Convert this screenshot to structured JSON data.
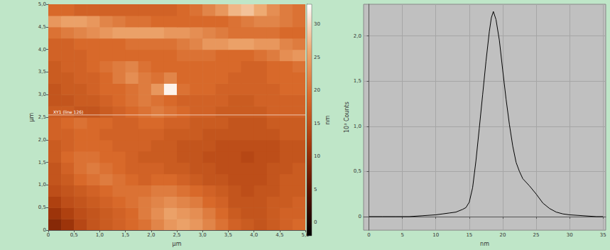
{
  "chart_data": [
    {
      "type": "heatmap",
      "x": [
        0.125,
        0.375,
        0.625,
        0.875,
        1.125,
        1.375,
        1.625,
        1.875,
        2.125,
        2.375,
        2.625,
        2.875,
        3.125,
        3.375,
        3.625,
        3.875,
        4.125,
        4.375,
        4.625,
        4.875
      ],
      "y": [
        0.125,
        0.375,
        0.625,
        0.875,
        1.125,
        1.375,
        1.625,
        1.875,
        2.125,
        2.375,
        2.625,
        2.875,
        3.125,
        3.375,
        3.625,
        3.875,
        4.125,
        4.375,
        4.625,
        4.875
      ],
      "z": [
        [
          9,
          11,
          14,
          16,
          17,
          18,
          19,
          20,
          22,
          24,
          25,
          24,
          22,
          20,
          18,
          17,
          16,
          17,
          18,
          19
        ],
        [
          11,
          13,
          15,
          16,
          17,
          18,
          19,
          21,
          23,
          25,
          24,
          23,
          21,
          19,
          17,
          16,
          16,
          17,
          18,
          18
        ],
        [
          13,
          15,
          16,
          17,
          18,
          19,
          20,
          21,
          22,
          23,
          22,
          21,
          19,
          18,
          16,
          16,
          16,
          17,
          17,
          18
        ],
        [
          15,
          16,
          17,
          18,
          19,
          20,
          20,
          20,
          21,
          21,
          20,
          19,
          18,
          17,
          16,
          15,
          16,
          16,
          17,
          17
        ],
        [
          16,
          17,
          19,
          20,
          21,
          20,
          19,
          18,
          19,
          19,
          18,
          17,
          16,
          16,
          15,
          15,
          15,
          16,
          17,
          17
        ],
        [
          16,
          18,
          20,
          21,
          20,
          19,
          18,
          18,
          18,
          17,
          17,
          16,
          16,
          15,
          15,
          15,
          15,
          16,
          16,
          17
        ],
        [
          17,
          19,
          20,
          20,
          19,
          19,
          18,
          17,
          17,
          17,
          16,
          16,
          15,
          15,
          15,
          14,
          15,
          15,
          16,
          16
        ],
        [
          17,
          18,
          19,
          19,
          19,
          18,
          18,
          18,
          17,
          17,
          16,
          16,
          16,
          15,
          15,
          15,
          15,
          15,
          16,
          16
        ],
        [
          18,
          18,
          19,
          19,
          18,
          18,
          18,
          18,
          18,
          17,
          17,
          17,
          16,
          16,
          16,
          16,
          16,
          16,
          17,
          17
        ],
        [
          18,
          19,
          20,
          19,
          19,
          18,
          18,
          19,
          19,
          18,
          18,
          17,
          17,
          17,
          16,
          16,
          16,
          17,
          17,
          17
        ],
        [
          17,
          17,
          16,
          16,
          17,
          18,
          19,
          20,
          21,
          20,
          19,
          18,
          18,
          17,
          17,
          17,
          17,
          18,
          18,
          18
        ],
        [
          16,
          16,
          17,
          17,
          18,
          19,
          20,
          21,
          20,
          19,
          18,
          18,
          18,
          18,
          17,
          17,
          18,
          18,
          18,
          18
        ],
        [
          16,
          17,
          17,
          18,
          19,
          19,
          20,
          21,
          24,
          32,
          20,
          19,
          19,
          18,
          18,
          18,
          18,
          18,
          19,
          19
        ],
        [
          17,
          17,
          18,
          18,
          19,
          21,
          23,
          21,
          20,
          22,
          19,
          19,
          19,
          19,
          18,
          18,
          18,
          19,
          19,
          19
        ],
        [
          17,
          18,
          18,
          19,
          20,
          21,
          22,
          20,
          19,
          19,
          19,
          19,
          19,
          19,
          19,
          18,
          18,
          19,
          19,
          20
        ],
        [
          18,
          18,
          18,
          19,
          19,
          19,
          19,
          19,
          19,
          19,
          20,
          20,
          20,
          19,
          19,
          19,
          20,
          21,
          23,
          24
        ],
        [
          18,
          18,
          19,
          19,
          19,
          19,
          20,
          20,
          20,
          20,
          21,
          22,
          24,
          24,
          25,
          25,
          24,
          24,
          22,
          21
        ],
        [
          20,
          21,
          22,
          23,
          24,
          25,
          25,
          25,
          25,
          24,
          24,
          23,
          22,
          21,
          20,
          20,
          20,
          20,
          19,
          19
        ],
        [
          24,
          25,
          25,
          24,
          22,
          21,
          20,
          20,
          19,
          19,
          19,
          19,
          19,
          19,
          20,
          21,
          22,
          22,
          21,
          20
        ],
        [
          19,
          19,
          18,
          18,
          18,
          18,
          18,
          18,
          18,
          18,
          19,
          20,
          22,
          24,
          27,
          28,
          26,
          23,
          21,
          20
        ]
      ],
      "xlim": [
        0,
        5
      ],
      "ylim": [
        0,
        5
      ],
      "xticks": [
        0,
        {
          "value": 0.5,
          "label": "0,5"
        },
        {
          "value": 1,
          "label": "1,0"
        },
        {
          "value": 1.5,
          "label": "1,5"
        },
        {
          "value": 2,
          "label": "2,0"
        },
        {
          "value": 2.5,
          "label": "2,5"
        },
        {
          "value": 3,
          "label": "3,0"
        },
        {
          "value": 3.5,
          "label": "3,5"
        },
        {
          "value": 4,
          "label": "4,0"
        },
        {
          "value": 4.5,
          "label": "4,5"
        },
        {
          "value": 5,
          "label": "5,0"
        }
      ],
      "yticks": [
        0,
        {
          "value": 0.5,
          "label": "0,5"
        },
        {
          "value": 1,
          "label": "1,0"
        },
        {
          "value": 1.5,
          "label": "1,5"
        },
        {
          "value": 2,
          "label": "2,0"
        },
        {
          "value": 2.5,
          "label": "2,5"
        },
        {
          "value": 3,
          "label": "3,0"
        },
        {
          "value": 3.5,
          "label": "3,5"
        },
        {
          "value": 4,
          "label": "4,0"
        },
        {
          "value": 4.5,
          "label": "4,5"
        },
        {
          "value": 5,
          "label": "5,0"
        }
      ],
      "x_label": "µm",
      "y_label": "µm",
      "colorbar_range": [
        -2,
        33
      ],
      "colorbar_ticks": [
        0,
        5,
        10,
        15,
        20,
        25,
        30
      ],
      "colorbar_label": "nm",
      "annotation": {
        "y": 2.55,
        "label": "XY1 (line 126)"
      }
    },
    {
      "type": "line",
      "x": [
        0,
        2,
        4,
        6,
        8,
        10,
        11,
        12,
        13,
        14,
        14.5,
        15,
        15.5,
        16,
        16.5,
        17,
        17.5,
        18,
        18.3,
        18.6,
        19,
        19.5,
        20,
        20.5,
        21,
        21.5,
        22,
        22.5,
        23,
        24,
        25,
        26,
        27,
        28,
        29,
        30,
        32,
        34,
        35
      ],
      "values": [
        0,
        0,
        0,
        0,
        0.01,
        0.02,
        0.03,
        0.04,
        0.05,
        0.08,
        0.1,
        0.16,
        0.32,
        0.62,
        0.98,
        1.35,
        1.72,
        2.05,
        2.2,
        2.27,
        2.18,
        1.95,
        1.62,
        1.3,
        1.02,
        0.78,
        0.6,
        0.5,
        0.42,
        0.34,
        0.25,
        0.15,
        0.09,
        0.05,
        0.03,
        0.02,
        0.01,
        0,
        0
      ],
      "color": "#000000",
      "xlim": [
        -0.8,
        35.4
      ],
      "ylim": [
        -0.15,
        2.35
      ],
      "xticks": [
        0,
        5,
        10,
        15,
        20,
        25,
        30,
        35
      ],
      "yticks": [
        0,
        {
          "value": 0.5,
          "label": "0,5"
        },
        {
          "value": 1,
          "label": "1,0"
        },
        {
          "value": 1.5,
          "label": "1,5"
        },
        {
          "value": 2,
          "label": "2,0"
        }
      ],
      "x_label": "nm",
      "y_label": "10³ Counts",
      "grid": true
    }
  ]
}
